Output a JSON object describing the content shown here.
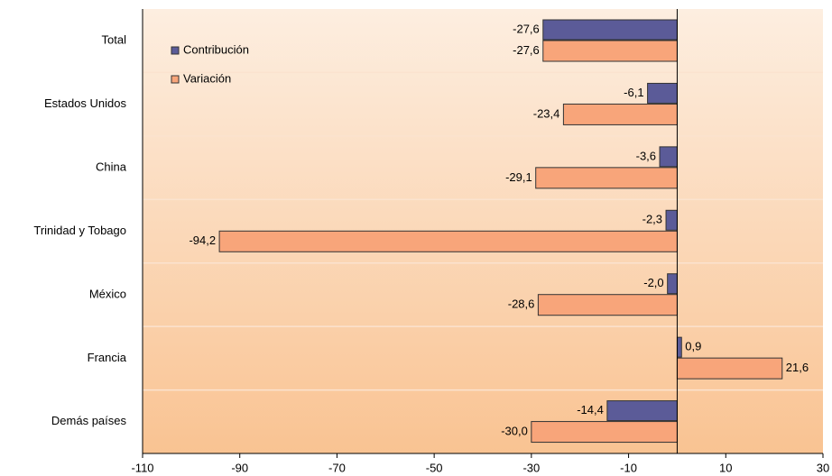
{
  "chart_data": {
    "type": "bar",
    "orientation": "horizontal",
    "categories": [
      "Total",
      "Estados Unidos",
      "China",
      "Trinidad y Tobago",
      "México",
      "Francia",
      "Demás países"
    ],
    "series": [
      {
        "name": "Contribución",
        "color": "#5b5b98",
        "values": [
          -27.6,
          -6.1,
          -3.6,
          -2.3,
          -2.0,
          0.9,
          -14.4
        ],
        "value_labels": [
          "-27,6",
          "-6,1",
          "-3,6",
          "-2,3",
          "-2,0",
          "0,9",
          "-14,4"
        ]
      },
      {
        "name": "Variación",
        "color": "#f8a57a",
        "values": [
          -27.6,
          -23.4,
          -29.1,
          -94.2,
          -28.6,
          21.6,
          -30.0
        ],
        "value_labels": [
          "-27,6",
          "-23,4",
          "-29,1",
          "-94,2",
          "-28,6",
          "21,6",
          "-30,0"
        ]
      }
    ],
    "xlim": [
      -110,
      30
    ],
    "xticks": [
      -110,
      -90,
      -70,
      -50,
      -30,
      -10,
      10,
      30
    ],
    "legend": "upper-left"
  }
}
